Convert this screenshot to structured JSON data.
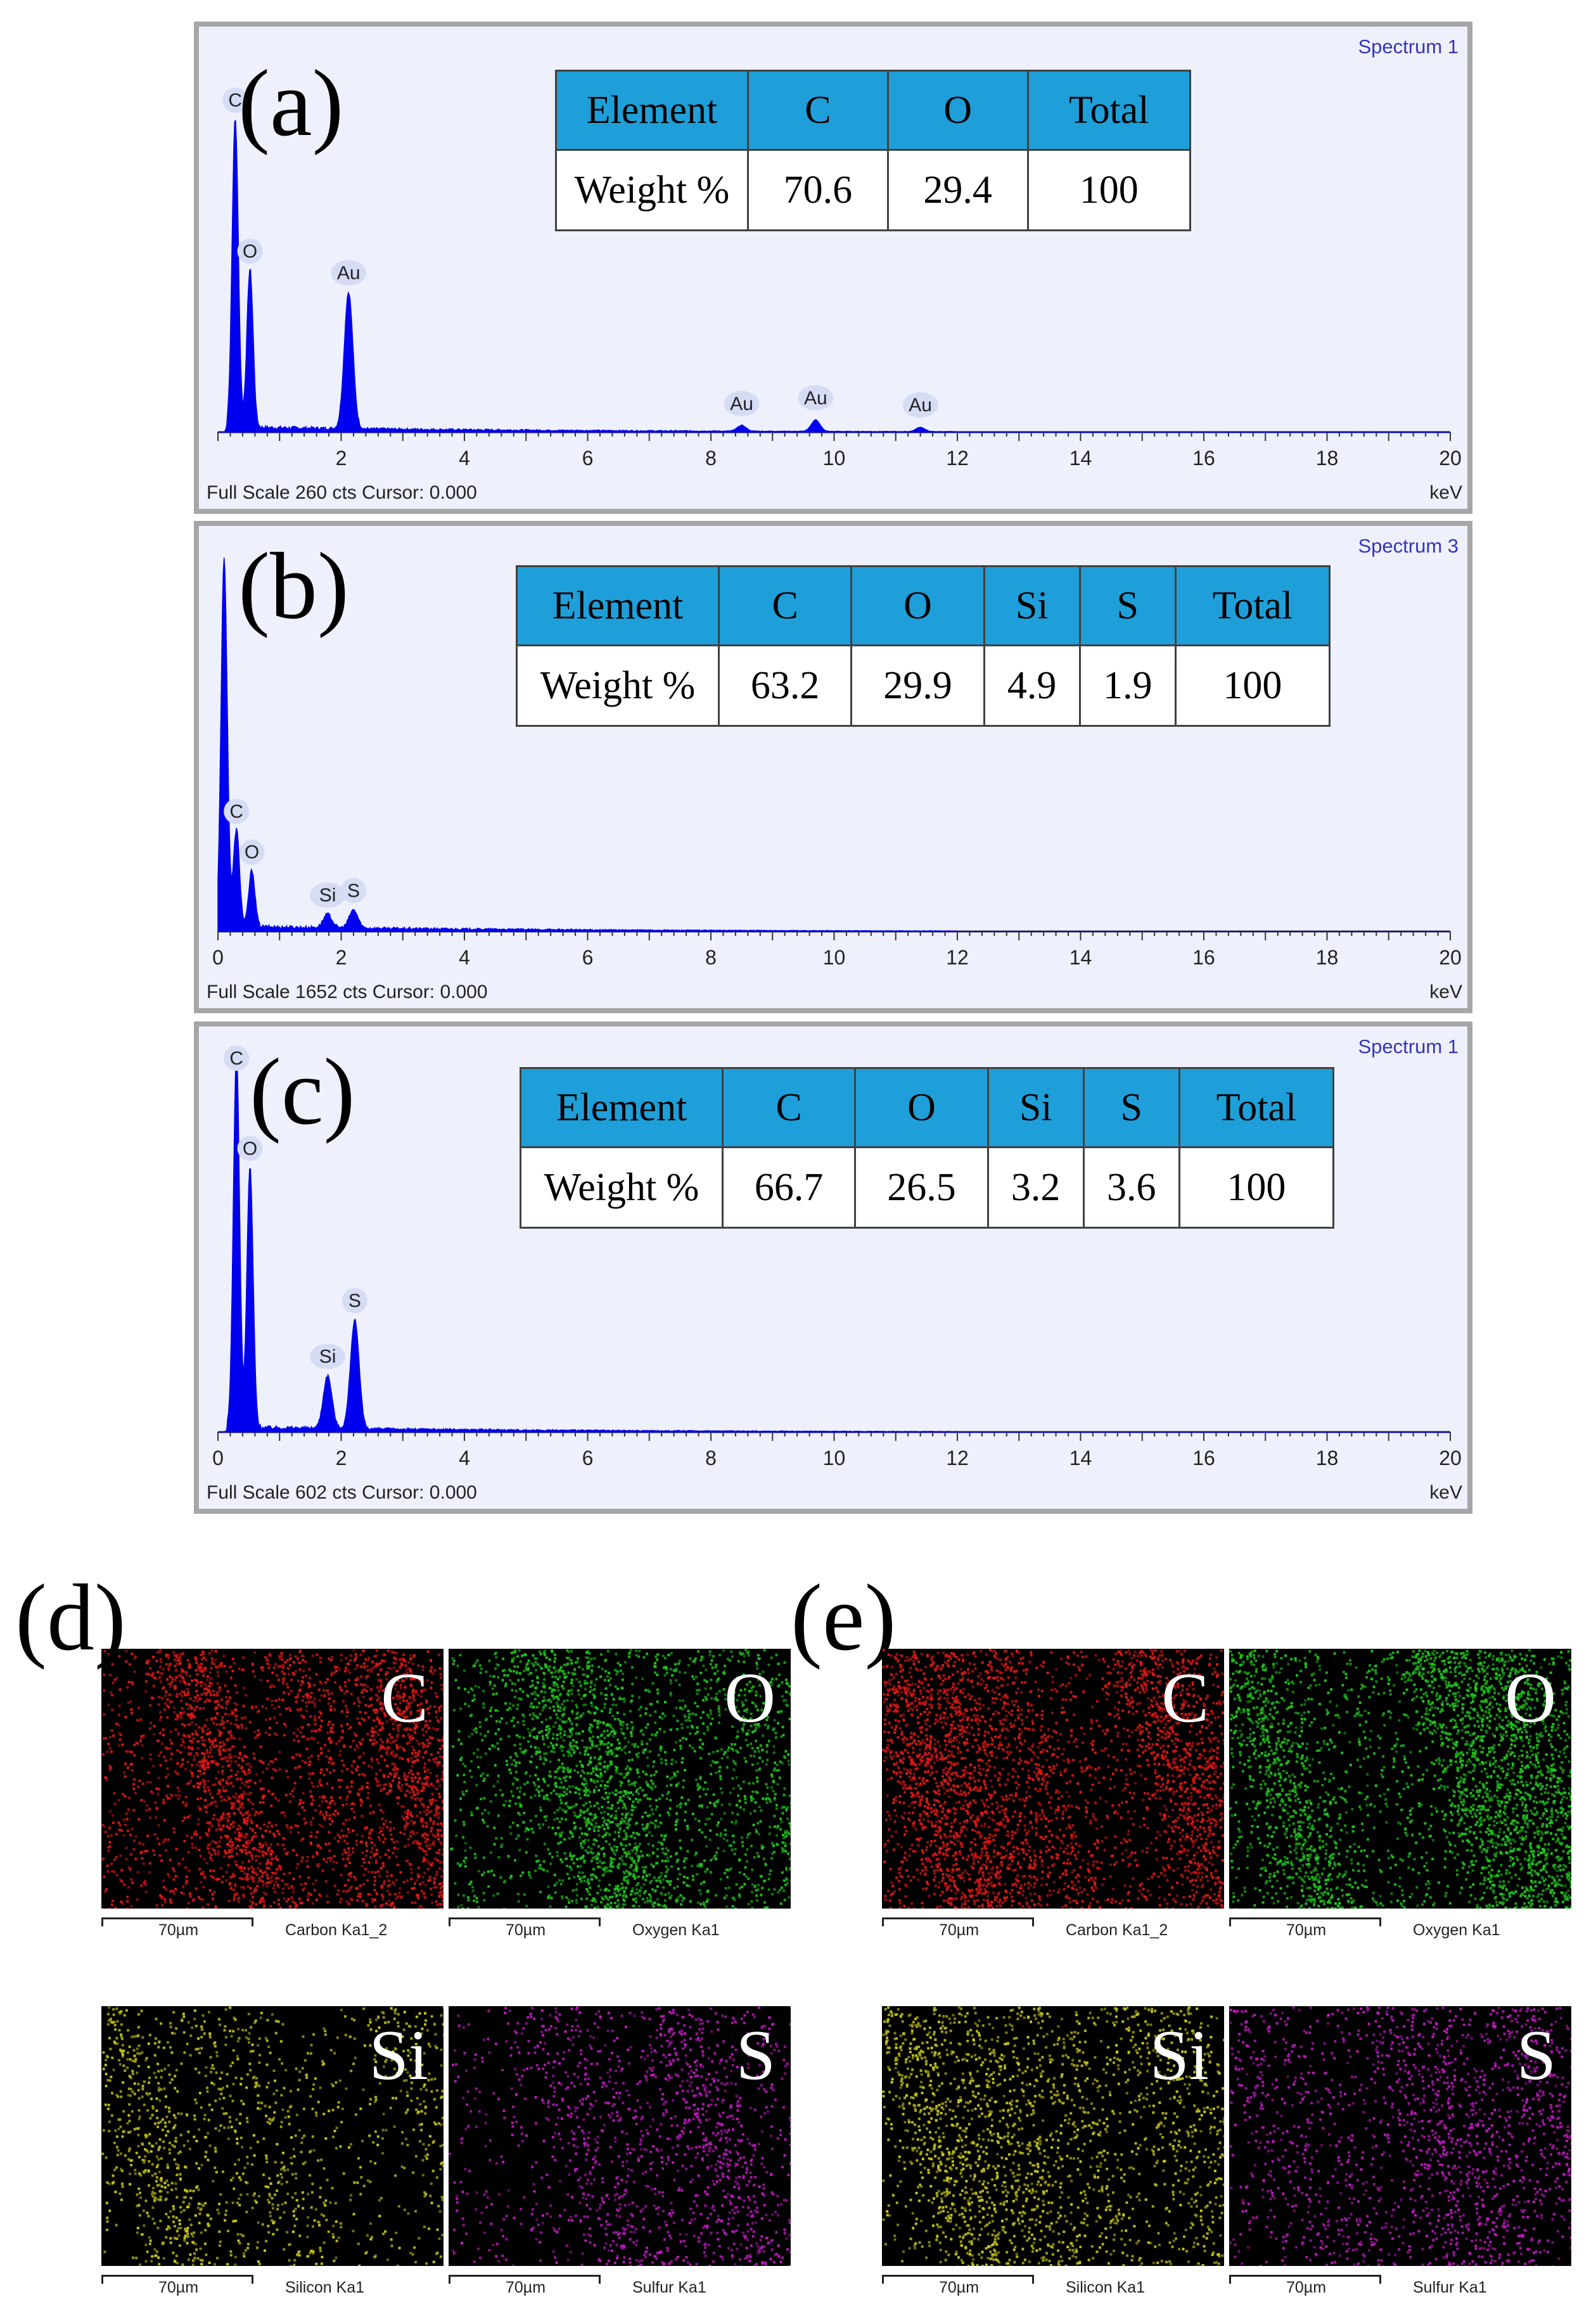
{
  "chart_data": [
    {
      "type": "line",
      "panel_label": "(a)",
      "spectrum_name": "Spectrum 1",
      "footer": "Full Scale 260 cts Cursor: 0.000",
      "xlabel": "keV",
      "xlim": [
        0,
        20
      ],
      "x_ticks": [
        "2",
        "4",
        "6",
        "8",
        "10",
        "12",
        "14",
        "16",
        "18",
        "20"
      ],
      "ymax": 260,
      "color": "#0000ee",
      "peaks": [
        {
          "label": "C",
          "x": 0.28,
          "y": 215
        },
        {
          "label": "O",
          "x": 0.52,
          "y": 110
        },
        {
          "label": "Au",
          "x": 2.12,
          "y": 95
        },
        {
          "label": "Au",
          "x": 8.5,
          "y": 4
        },
        {
          "label": "Au",
          "x": 9.7,
          "y": 8
        },
        {
          "label": "Au",
          "x": 11.4,
          "y": 3
        }
      ],
      "table": {
        "headers": [
          "Element",
          "C",
          "O",
          "Total"
        ],
        "row_label": "Weight %",
        "values": [
          "70.6",
          "29.4",
          "100"
        ]
      }
    },
    {
      "type": "line",
      "panel_label": "(b)",
      "spectrum_name": "Spectrum 3",
      "footer": "Full Scale 1652 cts Cursor: 0.000",
      "xlabel": "keV",
      "xlim": [
        0,
        20
      ],
      "x_ticks": [
        "0",
        "2",
        "4",
        "6",
        "8",
        "10",
        "12",
        "14",
        "16",
        "18",
        "20"
      ],
      "ymax": 1652,
      "color": "#0000ee",
      "peaks": [
        {
          "label": "",
          "x": 0.1,
          "y": 1652
        },
        {
          "label": "C",
          "x": 0.3,
          "y": 430
        },
        {
          "label": "O",
          "x": 0.55,
          "y": 250
        },
        {
          "label": "Si",
          "x": 1.78,
          "y": 60
        },
        {
          "label": "S",
          "x": 2.2,
          "y": 80
        }
      ],
      "table": {
        "headers": [
          "Element",
          "C",
          "O",
          "Si",
          "S",
          "Total"
        ],
        "row_label": "Weight %",
        "values": [
          "63.2",
          "29.9",
          "4.9",
          "1.9",
          "100"
        ]
      }
    },
    {
      "type": "line",
      "panel_label": "(c)",
      "spectrum_name": "Spectrum 1",
      "footer": "Full Scale 602 cts Cursor: 0.000",
      "xlabel": "keV",
      "xlim": [
        0,
        20
      ],
      "x_ticks": [
        "0",
        "2",
        "4",
        "6",
        "8",
        "10",
        "12",
        "14",
        "16",
        "18",
        "20"
      ],
      "ymax": 602,
      "color": "#0000ee",
      "peaks": [
        {
          "label": "C",
          "x": 0.3,
          "y": 602
        },
        {
          "label": "O",
          "x": 0.52,
          "y": 420
        },
        {
          "label": "Si",
          "x": 1.78,
          "y": 85
        },
        {
          "label": "S",
          "x": 2.22,
          "y": 175
        }
      ],
      "table": {
        "headers": [
          "Element",
          "C",
          "O",
          "Si",
          "S",
          "Total"
        ],
        "row_label": "Weight %",
        "values": [
          "66.7",
          "26.5",
          "3.2",
          "3.6",
          "100"
        ]
      }
    }
  ],
  "maps": [
    {
      "panel_label": "(d)",
      "tiles": [
        {
          "symbol": "C",
          "scale": "70µm",
          "caption": "Carbon Ka1_2",
          "color": "#e01818",
          "density": 0.75
        },
        {
          "symbol": "O",
          "scale": "70µm",
          "caption": "Oxygen Ka1",
          "color": "#22c41f",
          "density": 0.6
        },
        {
          "symbol": "Si",
          "scale": "70µm",
          "caption": "Silicon Ka1",
          "color": "#c8c81c",
          "density": 0.3
        },
        {
          "symbol": "S",
          "scale": "70µm",
          "caption": "Sulfur Ka1",
          "color": "#c01ac0",
          "density": 0.3
        }
      ]
    },
    {
      "panel_label": "(e)",
      "tiles": [
        {
          "symbol": "C",
          "scale": "70µm",
          "caption": "Carbon Ka1_2",
          "color": "#e01818",
          "density": 0.75
        },
        {
          "symbol": "O",
          "scale": "70µm",
          "caption": "Oxygen Ka1",
          "color": "#22c41f",
          "density": 0.65
        },
        {
          "symbol": "Si",
          "scale": "70µm",
          "caption": "Silicon Ka1",
          "color": "#c8c81c",
          "density": 0.4
        },
        {
          "symbol": "S",
          "scale": "70µm",
          "caption": "Sulfur Ka1",
          "color": "#c01ac0",
          "density": 0.35
        }
      ]
    }
  ]
}
